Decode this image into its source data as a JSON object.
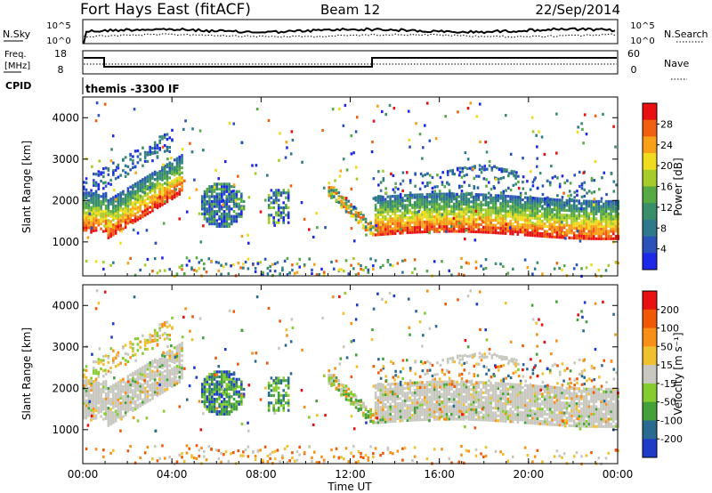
{
  "header": {
    "title": "Fort Hays East (fitACF)",
    "beam": "Beam 12",
    "date": "22/Sep/2014"
  },
  "noise_panel": {
    "left_label": "N.Sky",
    "right_label": "N.Search",
    "left_ticks": [
      "10^5",
      "10^0"
    ],
    "right_ticks": [
      "10^5",
      "10^0"
    ]
  },
  "freq_panel": {
    "left_label_1": "Freq.",
    "left_label_2": "[MHz]",
    "right_label": "Nave",
    "left_ticks": [
      "18",
      "8"
    ],
    "right_ticks": [
      "60",
      "0"
    ]
  },
  "cpid": {
    "label": "CPID",
    "text": "themis -3300 IF"
  },
  "colors": {
    "power_scale": [
      "#1e28e8",
      "#2a52b8",
      "#2f7a8a",
      "#3a8e6a",
      "#55aa44",
      "#a6cc2a",
      "#f0dc1e",
      "#f8a018",
      "#f06010",
      "#e81010"
    ],
    "velocity_scale": [
      "#1e3cc8",
      "#2a6a90",
      "#44a03a",
      "#86cc30",
      "#c8c8c0",
      "#f0c030",
      "#f89018",
      "#f05808",
      "#e81010"
    ]
  },
  "chart_data": [
    {
      "type": "heatmap",
      "name": "power",
      "ylabel": "Slant Range [km]",
      "yticks": [
        "1000",
        "2000",
        "3000",
        "4000"
      ],
      "colorbar_label": "Power [dB]",
      "colorbar_ticks": [
        "4",
        "8",
        "12",
        "16",
        "20",
        "24",
        "28"
      ],
      "ylim": [
        180,
        4500
      ],
      "clim": [
        0,
        32
      ]
    },
    {
      "type": "heatmap",
      "name": "velocity",
      "ylabel": "Slant Range [km]",
      "yticks": [
        "1000",
        "2000",
        "3000",
        "4000"
      ],
      "colorbar_label": "Velocity [m s⁻¹]",
      "colorbar_ticks": [
        "200",
        "100",
        "50",
        "15",
        "-15",
        "-50",
        "-100",
        "-200"
      ],
      "ylim": [
        180,
        4500
      ],
      "clim": [
        -250,
        250
      ]
    }
  ],
  "time_axis": {
    "label": "Time UT",
    "ticks": [
      "00:00",
      "04:00",
      "08:00",
      "12:00",
      "16:00",
      "20:00",
      "00:00"
    ],
    "range_hours": [
      0,
      24
    ]
  }
}
